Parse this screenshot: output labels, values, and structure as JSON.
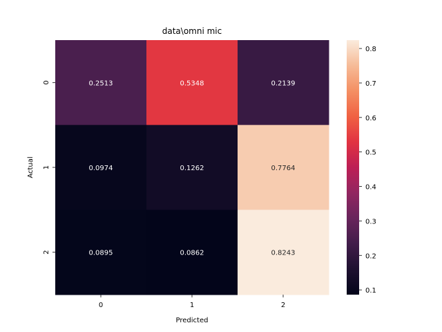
{
  "chart_data": {
    "type": "heatmap",
    "title": "data\\omni mic",
    "xlabel": "Predicted",
    "ylabel": "Actual",
    "x_categories": [
      "0",
      "1",
      "2"
    ],
    "y_categories": [
      "0",
      "1",
      "2"
    ],
    "values": [
      [
        0.2513,
        0.5348,
        0.2139
      ],
      [
        0.0974,
        0.1262,
        0.7764
      ],
      [
        0.0895,
        0.0862,
        0.8243
      ]
    ],
    "value_labels": [
      [
        "0.2513",
        "0.5348",
        "0.2139"
      ],
      [
        "0.0974",
        "0.1262",
        "0.7764"
      ],
      [
        "0.0895",
        "0.0862",
        "0.8243"
      ]
    ],
    "colorbar": {
      "range": [
        0.0862,
        0.8243
      ],
      "ticks": [
        0.1,
        0.2,
        0.3,
        0.4,
        0.5,
        0.6,
        0.7,
        0.8
      ],
      "tick_labels": [
        "0.1",
        "0.2",
        "0.3",
        "0.4",
        "0.5",
        "0.6",
        "0.7",
        "0.8"
      ]
    },
    "colormap": "rocket"
  }
}
